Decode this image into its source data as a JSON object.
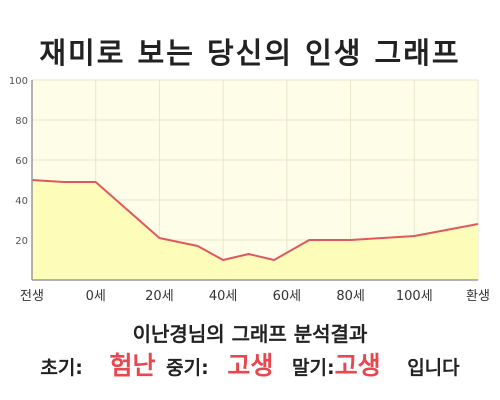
{
  "chart_data": {
    "type": "area",
    "title": "재미로 보는 당신의 인생 그래프",
    "x_labels": [
      "전생",
      "0세",
      "20세",
      "40세",
      "60세",
      "80세",
      "100세",
      "환생"
    ],
    "points": [
      {
        "x": -20,
        "y": 50
      },
      {
        "x": -10,
        "y": 49
      },
      {
        "x": 0,
        "y": 49
      },
      {
        "x": 20,
        "y": 21
      },
      {
        "x": 32,
        "y": 17
      },
      {
        "x": 40,
        "y": 10
      },
      {
        "x": 48,
        "y": 13
      },
      {
        "x": 56,
        "y": 10
      },
      {
        "x": 67,
        "y": 20
      },
      {
        "x": 80,
        "y": 20
      },
      {
        "x": 100,
        "y": 22
      },
      {
        "x": 120,
        "y": 28
      }
    ],
    "ylim": [
      0,
      100
    ],
    "yticks": [
      20,
      40,
      60,
      80,
      100
    ],
    "grid": true,
    "colors": {
      "background": "#fefde8",
      "fill": "#fefcb9",
      "line": "#e0585e",
      "grid": "#e8e6c8",
      "axis": "#9a9a9a"
    }
  },
  "summary": {
    "subtitle": "이난경님의 그래프 분석결과",
    "early_label": "초기:",
    "early_value": "험난",
    "mid_label": "중기:",
    "mid_value": "고생",
    "late_label": "말기:",
    "late_value": "고생",
    "ending": "입니다"
  }
}
